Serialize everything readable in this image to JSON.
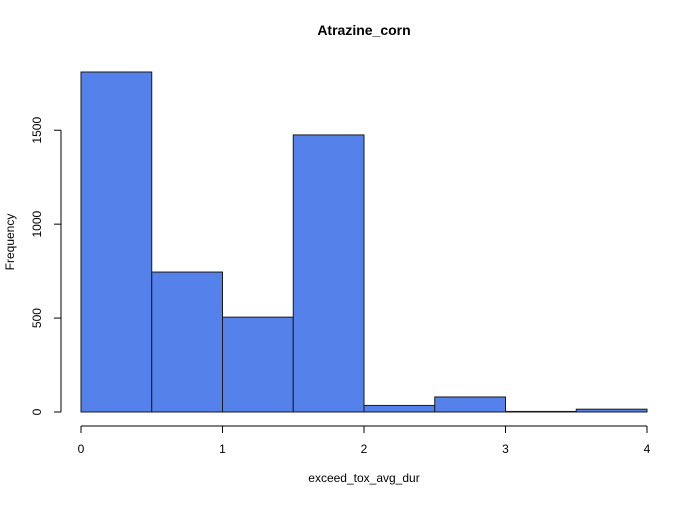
{
  "chart_data": {
    "type": "bar",
    "title": "Atrazine_corn",
    "xlabel": "exceed_tox_avg_dur",
    "ylabel": "Frequency",
    "bins": [
      {
        "x0": 0.0,
        "x1": 0.5,
        "count": 1810
      },
      {
        "x0": 0.5,
        "x1": 1.0,
        "count": 745
      },
      {
        "x0": 1.0,
        "x1": 1.5,
        "count": 505
      },
      {
        "x0": 1.5,
        "x1": 2.0,
        "count": 1475
      },
      {
        "x0": 2.0,
        "x1": 2.5,
        "count": 35
      },
      {
        "x0": 2.5,
        "x1": 3.0,
        "count": 80
      },
      {
        "x0": 3.0,
        "x1": 3.5,
        "count": 3
      },
      {
        "x0": 3.5,
        "x1": 4.0,
        "count": 15
      }
    ],
    "xlim": [
      0,
      4
    ],
    "ylim": [
      0,
      1810
    ],
    "x_ticks": [
      "0",
      "1",
      "2",
      "3",
      "4"
    ],
    "y_ticks": [
      "0",
      "500",
      "1000",
      "1500"
    ],
    "bar_color": "#5581EA",
    "border_color": "#1a1a1a",
    "grid": false
  }
}
